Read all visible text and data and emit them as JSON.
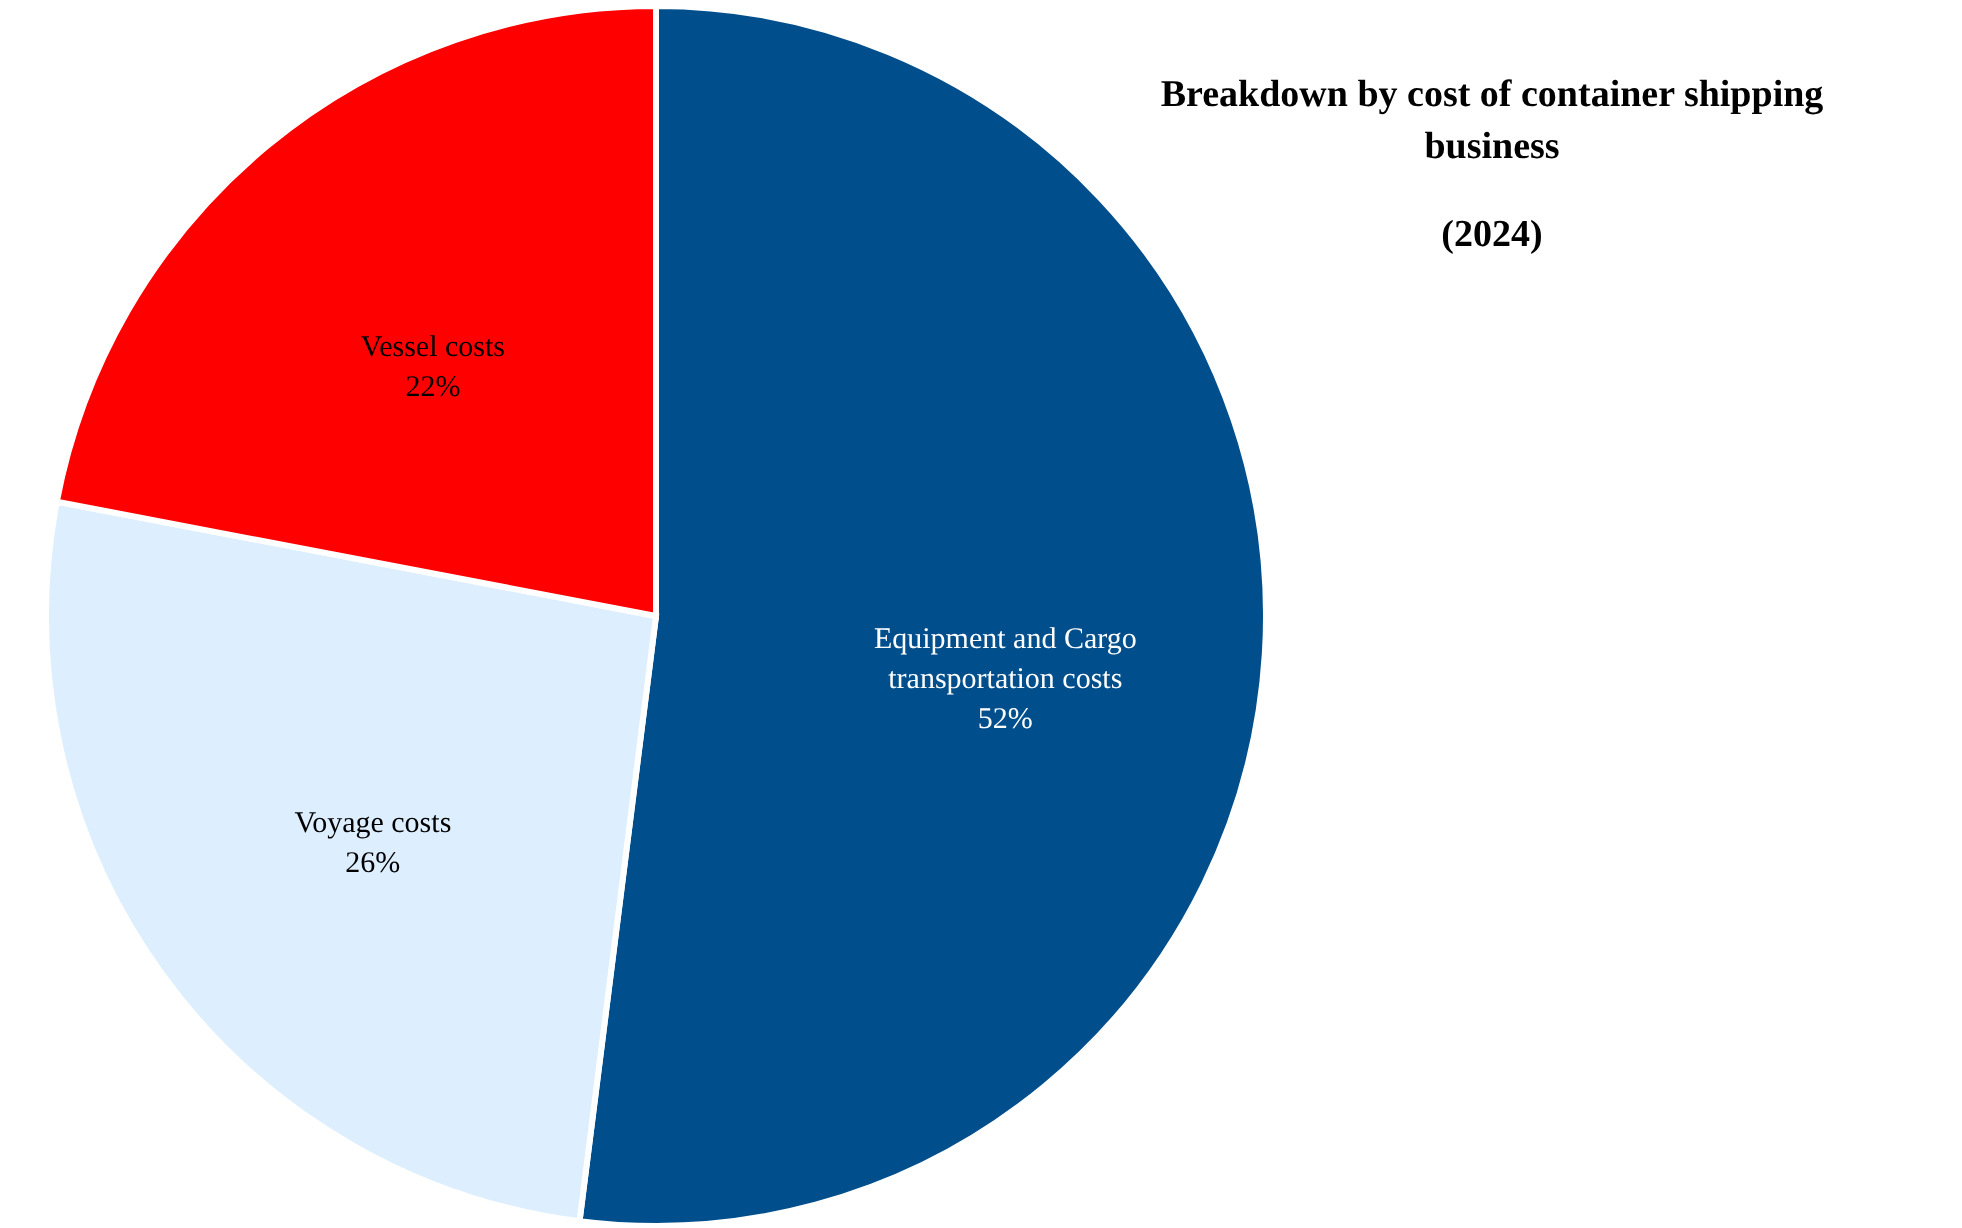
{
  "chart_data": {
    "type": "pie",
    "title": "Breakdown by cost of container shipping business",
    "subtitle": "(2024)",
    "categories": [
      "Equipment and Cargo transportation costs",
      "Voyage costs",
      "Vessel costs"
    ],
    "values": [
      52,
      26,
      22
    ],
    "colors": [
      "#004f8c",
      "#ddeeff",
      "#ff0000"
    ],
    "value_labels": [
      "52%",
      "26%",
      "22%"
    ]
  }
}
